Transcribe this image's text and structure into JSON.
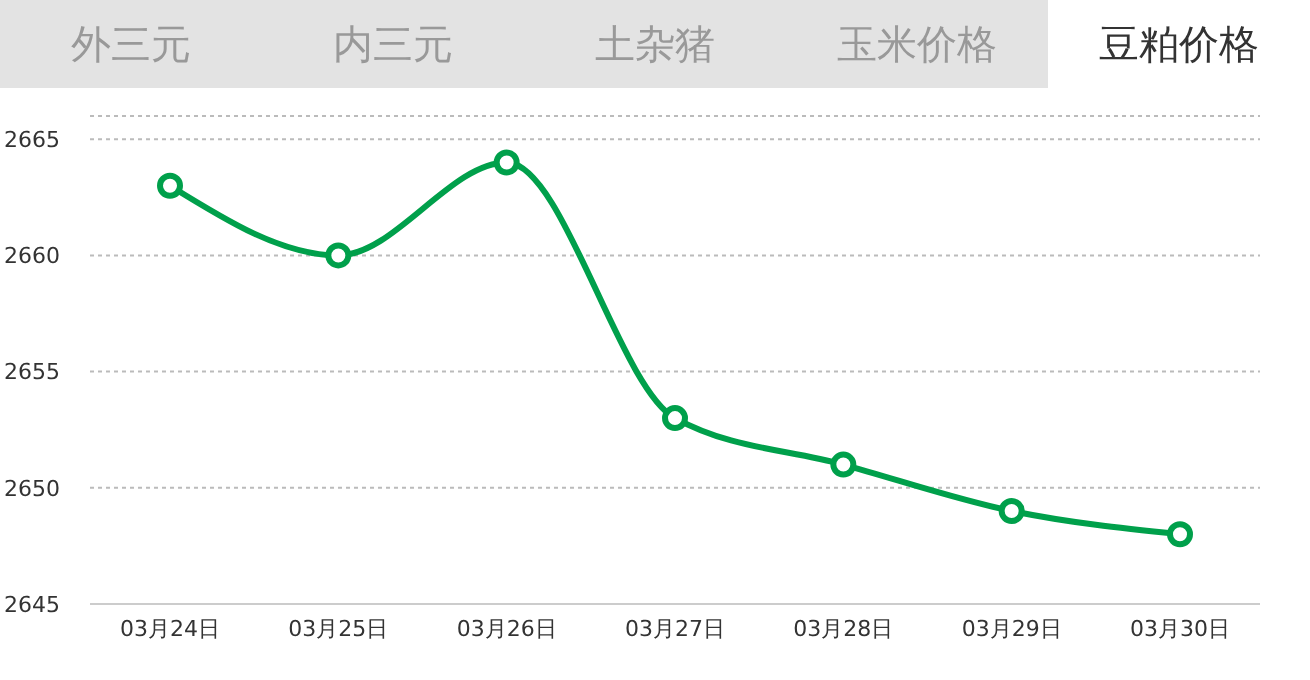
{
  "chart_data": {
    "type": "line",
    "title": "豆粕价格",
    "annotations": [
      "外三元",
      "内三元",
      "土杂猪",
      "玉米价格"
    ],
    "categories": [
      "03月24日",
      "03月25日",
      "03月26日",
      "03月27日",
      "03月28日",
      "03月29日",
      "03月30日"
    ],
    "series": [
      {
        "color": "#00a04b",
        "values": [
          2663,
          2660,
          2664,
          2653,
          2651,
          2649,
          2648
        ]
      }
    ],
    "ylim": [
      2645,
      2666
    ],
    "yticks": [
      2645,
      2650,
      2655,
      2660,
      2665
    ],
    "grid": "y",
    "legend": false,
    "marker": "circle",
    "line_style": "solid"
  }
}
